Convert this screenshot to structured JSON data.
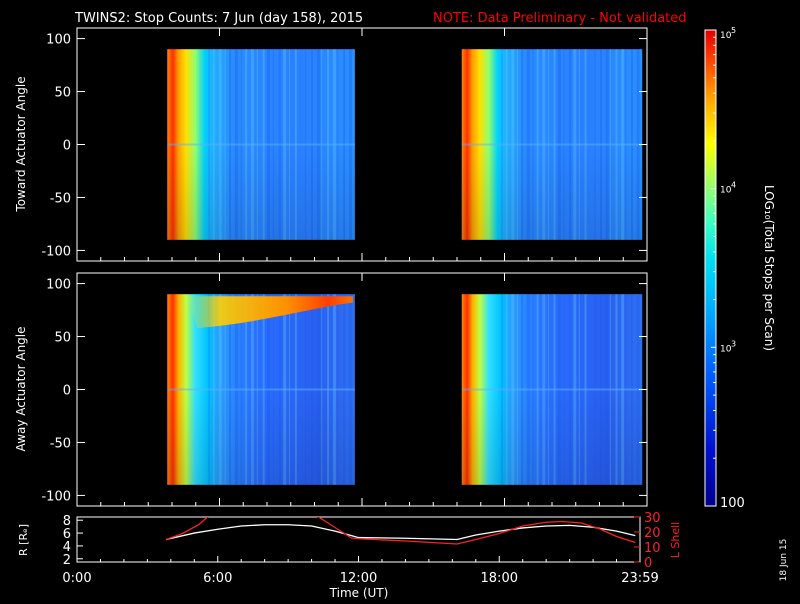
{
  "title": {
    "main": "TWINS2: Stop Counts:  7 Jun (day 158), 2015",
    "note": "NOTE: Data Preliminary - Not validated"
  },
  "stamp": "18 Jun 15",
  "colors": {
    "background": "#000000",
    "note": "#ff0000",
    "axis": "#ffffff",
    "r_line": "#ffffff",
    "lshell_line": "#ff2020"
  },
  "chart_data": [
    {
      "type": "heatmap",
      "ylabel": "Toward Actuator Angle",
      "xlim": [
        0,
        24
      ],
      "ylim": [
        -110,
        110
      ],
      "y_ticks": [
        100,
        50,
        0,
        -50,
        -100
      ],
      "y_tick_labels": [
        "100",
        "50",
        "0",
        "-50",
        "-100"
      ],
      "x_ticks": [
        0,
        6,
        12,
        18,
        24
      ],
      "data_blocks": [
        {
          "start_hour": 3.8,
          "end_hour": 11.7,
          "angle_range": [
            -90,
            90
          ]
        },
        {
          "start_hour": 16.2,
          "end_hour": 23.8,
          "angle_range": [
            -90,
            90
          ]
        }
      ]
    },
    {
      "type": "heatmap",
      "ylabel": "Away Actuator Angle",
      "xlim": [
        0,
        24
      ],
      "ylim": [
        -110,
        110
      ],
      "y_ticks": [
        100,
        50,
        0,
        -50,
        -100
      ],
      "y_tick_labels": [
        "100",
        "50",
        "0",
        "-50",
        "-100"
      ],
      "x_ticks": [
        0,
        6,
        12,
        18,
        24
      ],
      "data_blocks": [
        {
          "start_hour": 3.8,
          "end_hour": 11.7,
          "angle_range": [
            -90,
            90
          ]
        },
        {
          "start_hour": 16.2,
          "end_hour": 23.8,
          "angle_range": [
            -90,
            90
          ]
        }
      ]
    },
    {
      "type": "line",
      "ylabel": "R [Rₑ]",
      "y2label": "L Shell",
      "xlabel": "Time (UT)",
      "xlim": [
        0,
        24
      ],
      "ylim": [
        1.5,
        8.5
      ],
      "y_ticks": [
        2,
        4,
        6,
        8
      ],
      "y_tick_labels": [
        "2",
        "4",
        "6",
        "8"
      ],
      "y2lim": [
        0,
        30
      ],
      "y2_ticks": [
        0,
        10,
        20,
        30
      ],
      "y2_tick_labels": [
        "0",
        "10",
        "20",
        "30"
      ],
      "x_ticks": [
        0,
        6,
        12,
        18,
        24
      ],
      "x_tick_labels": [
        "0:00",
        "6:00",
        "12:00",
        "18:00",
        "23:59"
      ],
      "series": [
        {
          "axis": "left",
          "color": "#ffffff",
          "x": [
            3.8,
            5,
            6,
            7,
            8,
            9,
            10,
            11,
            11.7,
            12,
            14,
            16.2,
            17,
            18,
            19,
            20,
            21,
            22,
            23,
            23.8
          ],
          "y": [
            5.0,
            6.0,
            6.6,
            7.1,
            7.3,
            7.3,
            7.1,
            6.3,
            5.6,
            5.3,
            5.2,
            5.0,
            5.7,
            6.3,
            6.8,
            7.1,
            7.2,
            6.9,
            6.3,
            5.6
          ]
        },
        {
          "axis": "right",
          "color": "#ff2020",
          "x": [
            3.8,
            4.5,
            5.2,
            5.6,
            5.7,
            10.1,
            10.3,
            11,
            11.7,
            12,
            14,
            16.2,
            17,
            18,
            19,
            20,
            20.7,
            21.5,
            22.3,
            23,
            23.8
          ],
          "y": [
            15.0,
            19.0,
            25.0,
            30.5,
            31.0,
            31.0,
            30.0,
            23.0,
            16.0,
            15.5,
            14.0,
            12.0,
            15.0,
            19.0,
            24.0,
            26.5,
            27.0,
            26.0,
            22.0,
            17.0,
            13.0
          ]
        }
      ]
    },
    {
      "type": "colorbar",
      "ylabel": "LOG₁₀(Total Stops per Scan)",
      "range": [
        100,
        100000
      ],
      "ticks": [
        {
          "value": 100,
          "label": "100"
        },
        {
          "value": 1000,
          "base": "10",
          "exp": "3"
        },
        {
          "value": 10000,
          "base": "10",
          "exp": "4"
        },
        {
          "value": 100000,
          "base": "10",
          "exp": "5"
        }
      ]
    }
  ]
}
